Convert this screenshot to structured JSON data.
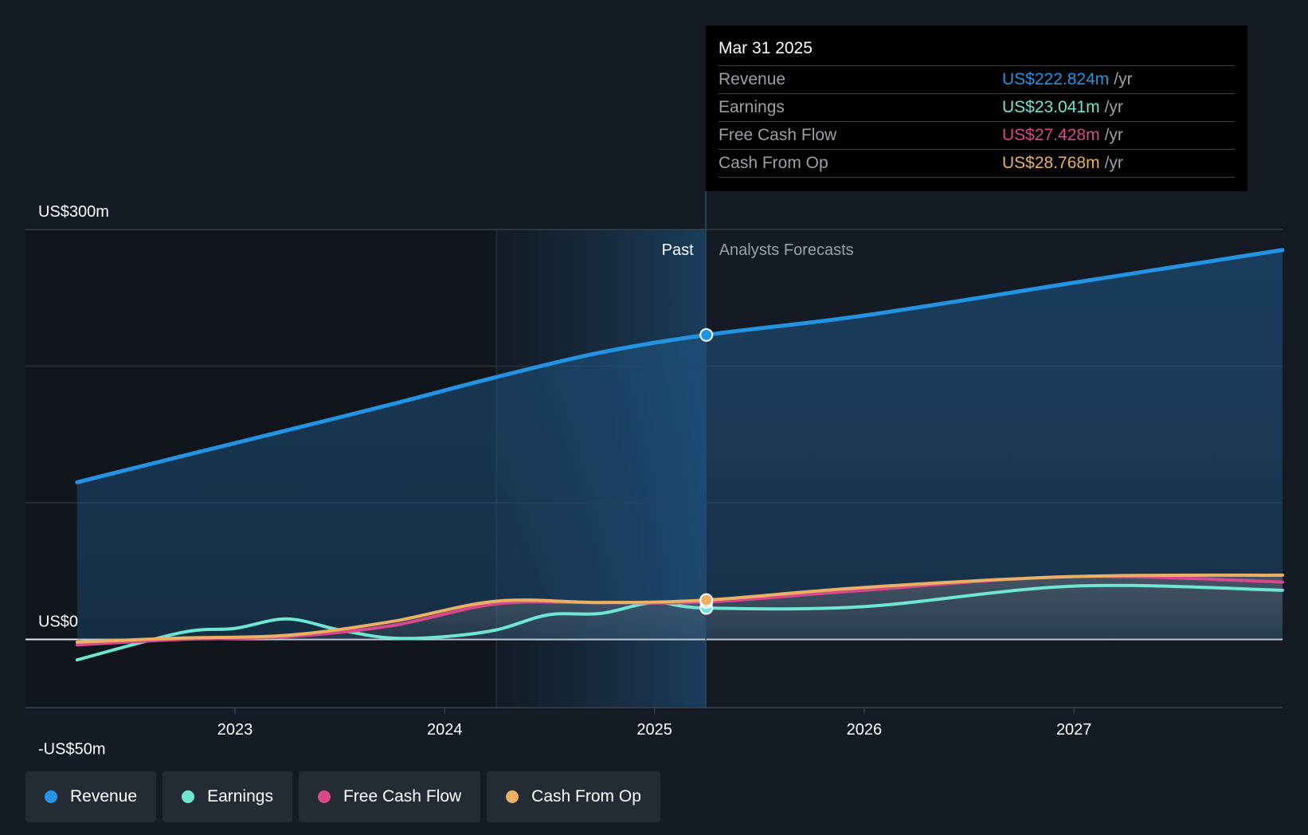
{
  "chart_data": {
    "type": "line",
    "title": "",
    "xlabel": "",
    "ylabel": "",
    "ylim": [
      -50,
      300
    ],
    "y_tick_labels": [
      "US$300m",
      "US$0",
      "-US$50m"
    ],
    "x_tick_labels": [
      "2023",
      "2024",
      "2025",
      "2026",
      "2027"
    ],
    "grid": true,
    "legend": "bottom",
    "past_label": "Past",
    "forecast_label": "Analysts Forecasts",
    "series": [
      {
        "name": "Revenue",
        "color": "#2394e3",
        "x": [
          "2022-03-31",
          "2022-09-30",
          "2023-03-31",
          "2023-09-30",
          "2024-03-31",
          "2024-09-30",
          "2025-03-31",
          "2025-12-31",
          "2026-12-31",
          "2027-12-31"
        ],
        "values": [
          115,
          134,
          153,
          172,
          192,
          210,
          222.8,
          237,
          261,
          285
        ]
      },
      {
        "name": "Earnings",
        "color": "#6ee6d1",
        "x": [
          "2022-03-31",
          "2022-09-30",
          "2022-12-31",
          "2023-03-31",
          "2023-06-30",
          "2023-09-30",
          "2023-12-31",
          "2024-03-31",
          "2024-06-30",
          "2024-09-30",
          "2024-12-31",
          "2025-03-31",
          "2025-12-31",
          "2026-12-31",
          "2027-12-31"
        ],
        "values": [
          -15,
          5,
          8,
          15,
          7,
          1,
          2,
          7,
          18,
          19,
          27,
          23,
          24,
          39,
          36
        ]
      },
      {
        "name": "Free Cash Flow",
        "color": "#d9488b",
        "x": [
          "2022-03-31",
          "2022-09-30",
          "2023-03-31",
          "2023-09-30",
          "2024-03-31",
          "2024-09-30",
          "2025-03-31",
          "2025-12-31",
          "2026-12-31",
          "2027-12-31"
        ],
        "values": [
          -4,
          0,
          2,
          10,
          26,
          27,
          27.4,
          36,
          46,
          42
        ]
      },
      {
        "name": "Cash From Op",
        "color": "#eab064",
        "x": [
          "2022-03-31",
          "2022-09-30",
          "2023-03-31",
          "2023-09-30",
          "2024-03-31",
          "2024-09-30",
          "2025-03-31",
          "2025-12-31",
          "2026-12-31",
          "2027-12-31"
        ],
        "values": [
          -2,
          1,
          3,
          13,
          28,
          27,
          28.8,
          38,
          46,
          47
        ]
      }
    ],
    "highlight_date": "2025-03-31"
  },
  "tooltip": {
    "date": "Mar 31 2025",
    "rows": [
      {
        "label": "Revenue",
        "value": "US$222.824m",
        "unit": "/yr",
        "color": "#2394e3"
      },
      {
        "label": "Earnings",
        "value": "US$23.041m",
        "unit": "/yr",
        "color": "#6ee6d1"
      },
      {
        "label": "Free Cash Flow",
        "value": "US$27.428m",
        "unit": "/yr",
        "color": "#d9488b"
      },
      {
        "label": "Cash From Op",
        "value": "US$28.768m",
        "unit": "/yr",
        "color": "#eab064"
      }
    ]
  },
  "legend": [
    {
      "label": "Revenue",
      "color": "#2394e3"
    },
    {
      "label": "Earnings",
      "color": "#6ee6d1"
    },
    {
      "label": "Free Cash Flow",
      "color": "#d9488b"
    },
    {
      "label": "Cash From Op",
      "color": "#eab064"
    }
  ]
}
